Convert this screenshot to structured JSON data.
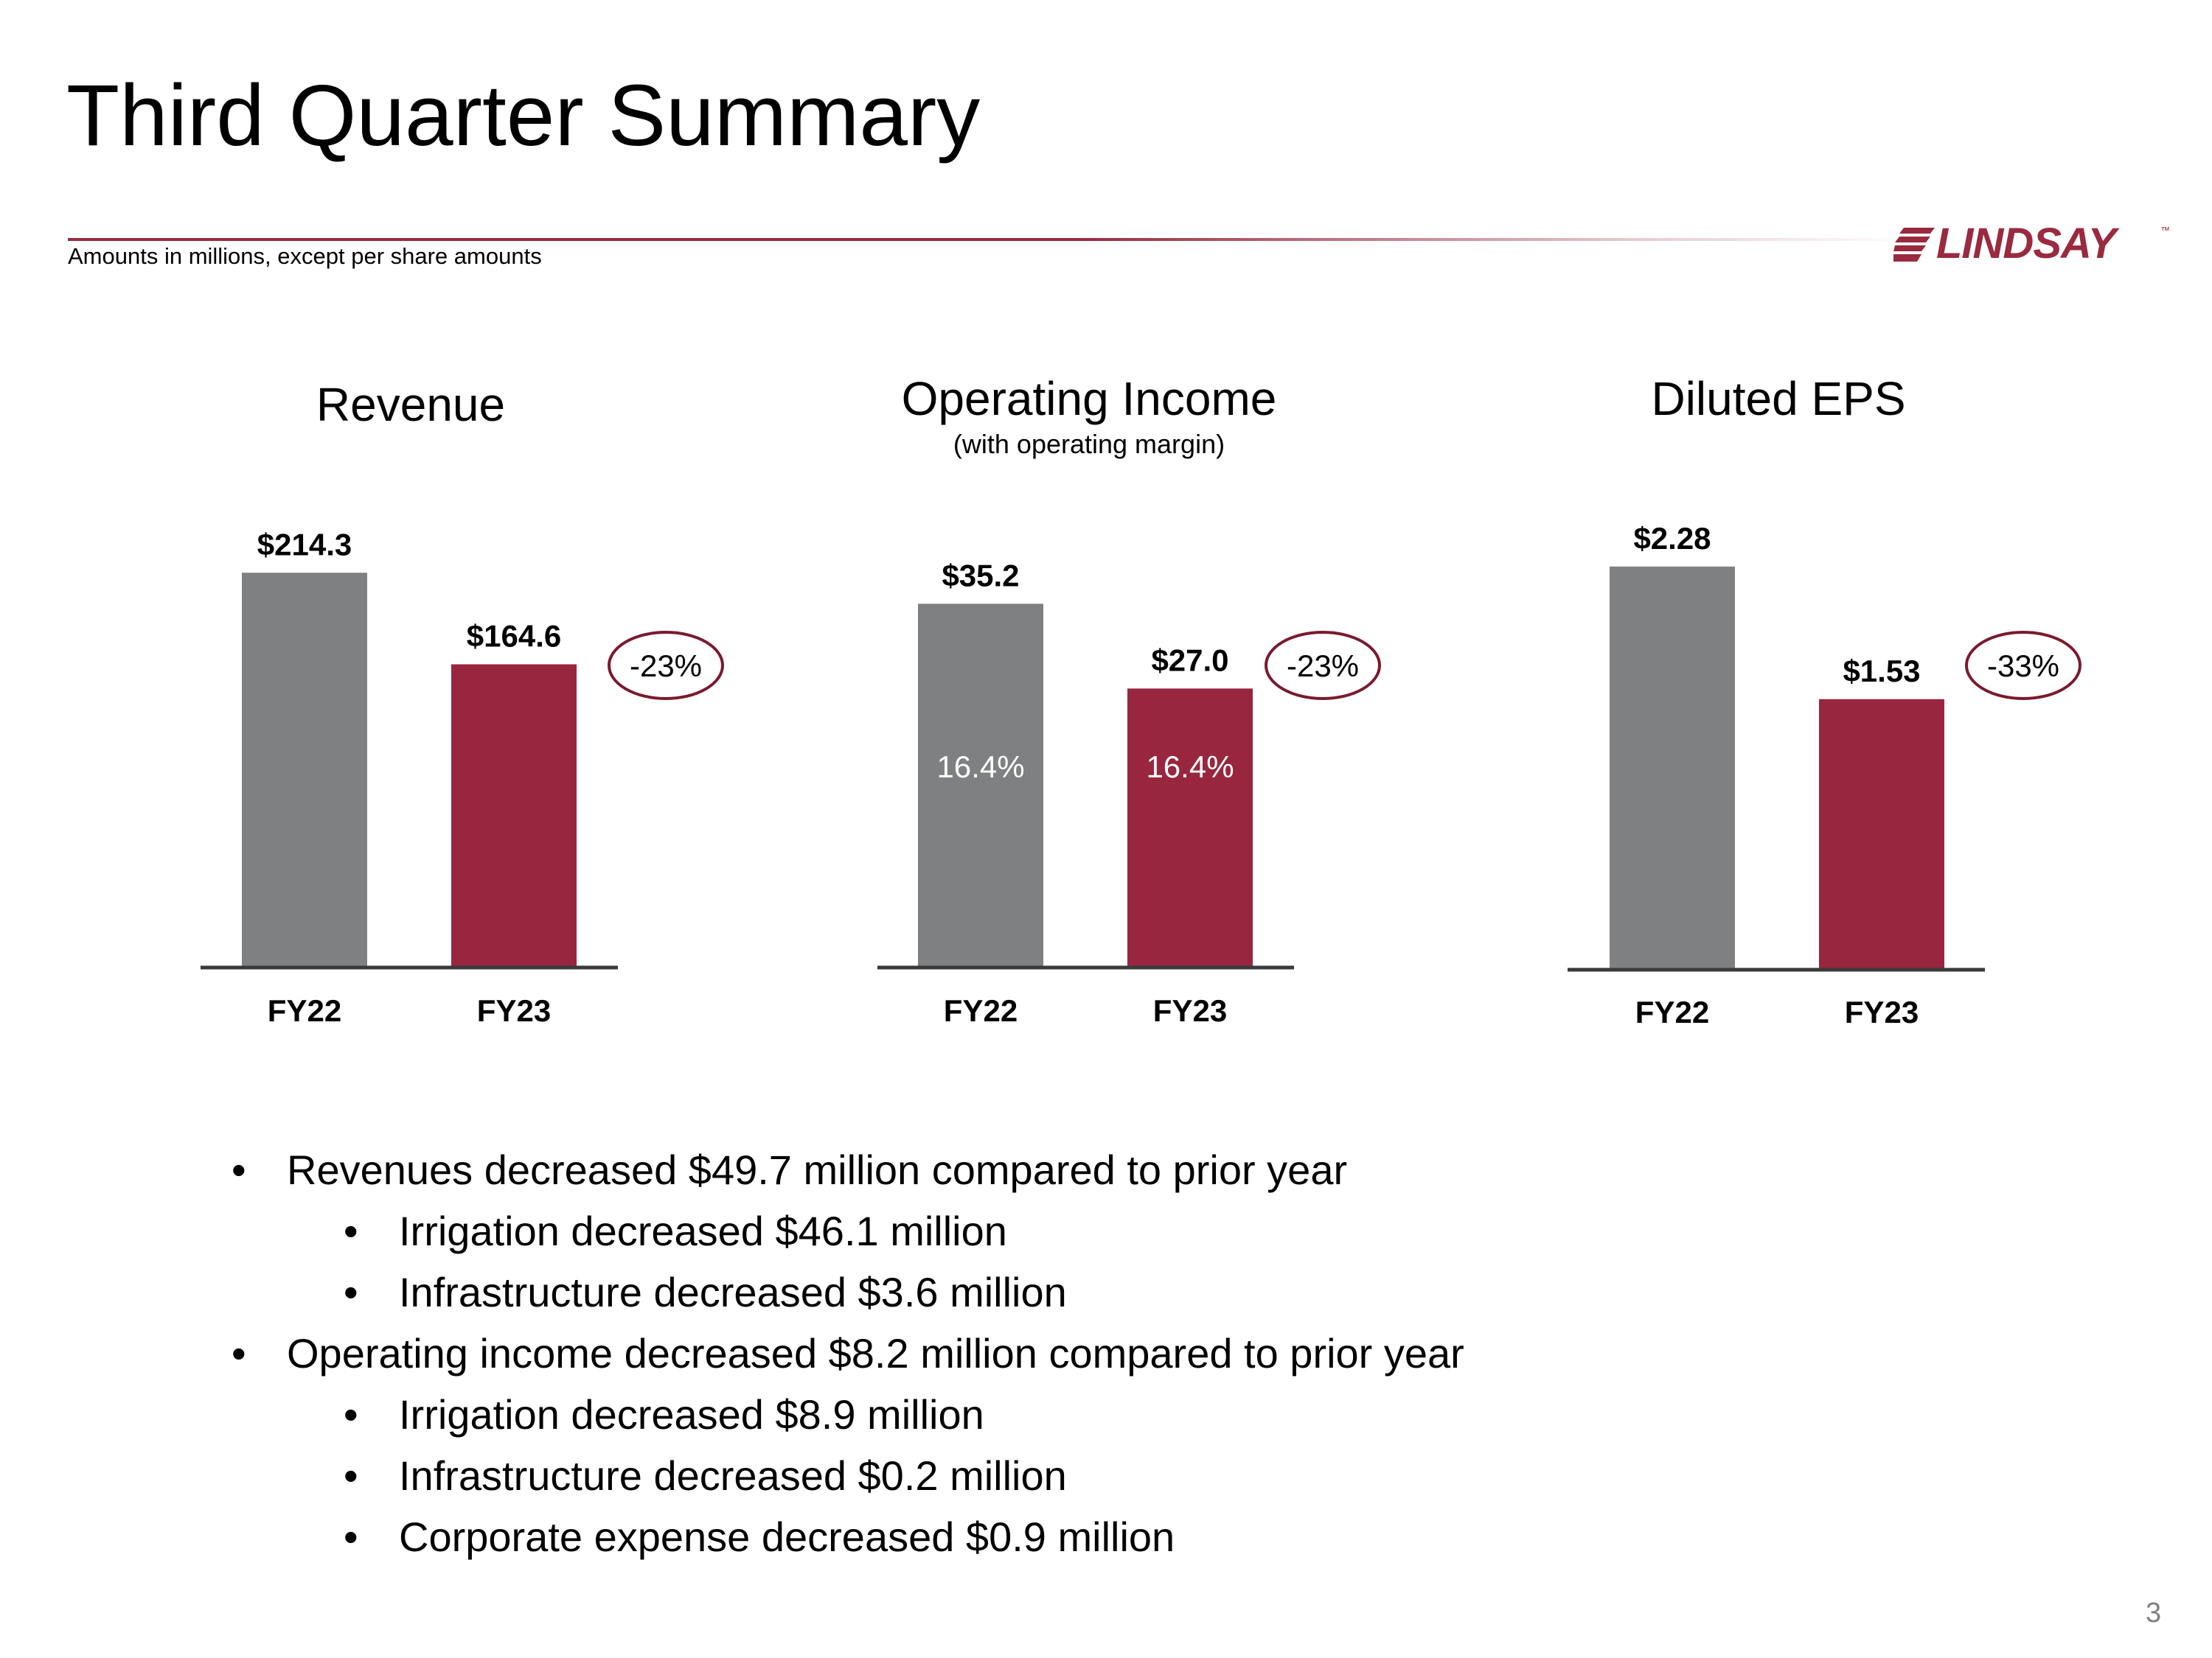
{
  "title": "Third Quarter Summary",
  "subnote": "Amounts in millions, except per share amounts",
  "logo": {
    "text": "LINDSAY",
    "tm": "™",
    "color": "#9a2a3f"
  },
  "colors": {
    "fy22": "#7f8081",
    "fy23": "#98263f",
    "axis": "#3a3a3a",
    "oval": "#7a1a2e"
  },
  "chart_data": [
    {
      "type": "bar",
      "title": "Revenue",
      "subtitle": "",
      "categories": [
        "FY22",
        "FY23"
      ],
      "values": [
        214.3,
        164.6
      ],
      "value_labels": [
        "$214.3",
        "$164.6"
      ],
      "inner_labels": [
        "",
        ""
      ],
      "change": "-23%",
      "ylim": [
        0,
        250
      ]
    },
    {
      "type": "bar",
      "title": "Operating Income",
      "subtitle": "(with operating margin)",
      "categories": [
        "FY22",
        "FY23"
      ],
      "values": [
        35.2,
        27.0
      ],
      "value_labels": [
        "$35.2",
        "$27.0"
      ],
      "inner_labels": [
        "16.4%",
        "16.4%"
      ],
      "change": "-23%",
      "ylim": [
        0,
        42
      ]
    },
    {
      "type": "bar",
      "title": "Diluted EPS",
      "subtitle": "",
      "categories": [
        "FY22",
        "FY23"
      ],
      "values": [
        2.28,
        1.53
      ],
      "value_labels": [
        "$2.28",
        "$1.53"
      ],
      "inner_labels": [
        "",
        ""
      ],
      "change": "-33%",
      "ylim": [
        0,
        2.6
      ]
    }
  ],
  "bullets": [
    {
      "level": 1,
      "text": "Revenues decreased $49.7 million compared to prior year"
    },
    {
      "level": 2,
      "text": "Irrigation decreased $46.1 million"
    },
    {
      "level": 2,
      "text": "Infrastructure decreased $3.6 million"
    },
    {
      "level": 1,
      "text": "Operating income decreased $8.2 million compared to prior year"
    },
    {
      "level": 2,
      "text": "Irrigation decreased $8.9 million"
    },
    {
      "level": 2,
      "text": "Infrastructure decreased $0.2 million"
    },
    {
      "level": 2,
      "text": "Corporate expense decreased $0.9 million"
    }
  ],
  "bullet_glyph": "•",
  "page_number": "3"
}
